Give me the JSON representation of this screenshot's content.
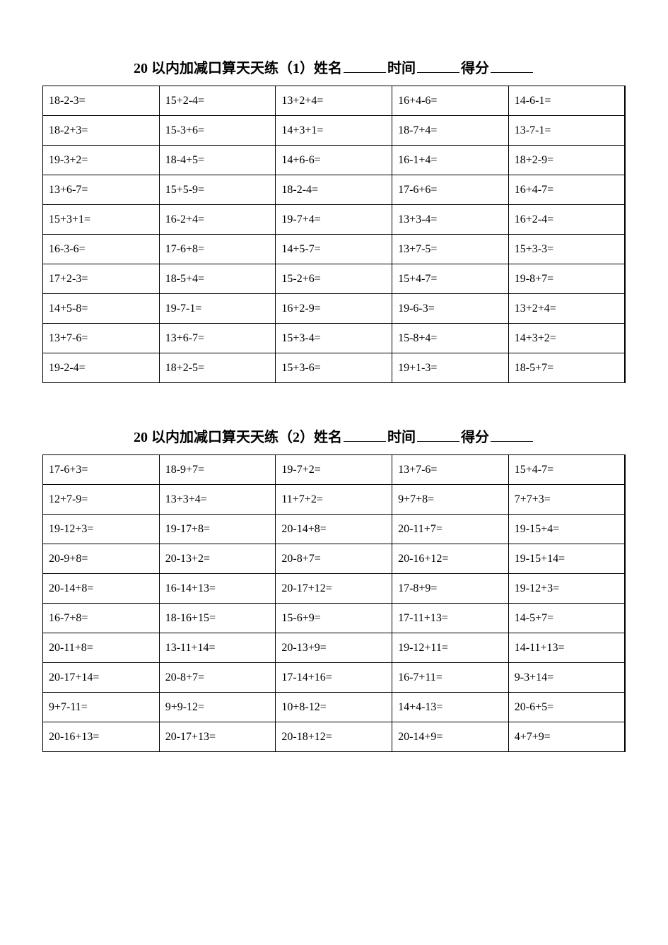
{
  "page": {
    "background_color": "#ffffff",
    "border_color": "#000000",
    "font_family_title": "SimSun",
    "font_family_cells": "Times New Roman",
    "title_fontsize": 20,
    "cell_fontsize": 16,
    "columns": 5,
    "rows_per_table": 10
  },
  "worksheets": [
    {
      "title_prefix": "20 以内加减口算天天练（1）姓名",
      "title_mid1": "时间",
      "title_mid2": "得分",
      "rows": [
        [
          "18-2-3=",
          "15+2-4=",
          "13+2+4=",
          "16+4-6=",
          "14-6-1="
        ],
        [
          "18-2+3=",
          "15-3+6=",
          "14+3+1=",
          "18-7+4=",
          "13-7-1="
        ],
        [
          "19-3+2=",
          "18-4+5=",
          "14+6-6=",
          "16-1+4=",
          "18+2-9="
        ],
        [
          "13+6-7=",
          "15+5-9=",
          "18-2-4=",
          "17-6+6=",
          "16+4-7="
        ],
        [
          "15+3+1=",
          "16-2+4=",
          "19-7+4=",
          "13+3-4=",
          "16+2-4="
        ],
        [
          "16-3-6=",
          "17-6+8=",
          "14+5-7=",
          "13+7-5=",
          "15+3-3="
        ],
        [
          "17+2-3=",
          "18-5+4=",
          "15-2+6=",
          "15+4-7=",
          "19-8+7="
        ],
        [
          "14+5-8=",
          "19-7-1=",
          "16+2-9=",
          "19-6-3=",
          "13+2+4="
        ],
        [
          "13+7-6=",
          "13+6-7=",
          "15+3-4=",
          "15-8+4=",
          "14+3+2="
        ],
        [
          "19-2-4=",
          "18+2-5=",
          "15+3-6=",
          "19+1-3=",
          "18-5+7="
        ]
      ]
    },
    {
      "title_prefix": "20 以内加减口算天天练（2）姓名",
      "title_mid1": "时间",
      "title_mid2": "得分",
      "rows": [
        [
          "17-6+3=",
          "18-9+7=",
          "19-7+2=",
          "13+7-6=",
          "15+4-7="
        ],
        [
          "12+7-9=",
          "13+3+4=",
          "11+7+2=",
          "9+7+8=",
          "7+7+3="
        ],
        [
          "19-12+3=",
          "19-17+8=",
          "20-14+8=",
          "20-11+7=",
          "19-15+4="
        ],
        [
          "20-9+8=",
          "20-13+2=",
          "20-8+7=",
          "20-16+12=",
          "19-15+14="
        ],
        [
          "20-14+8=",
          "16-14+13=",
          "20-17+12=",
          "17-8+9=",
          "19-12+3="
        ],
        [
          "16-7+8=",
          "18-16+15=",
          "15-6+9=",
          "17-11+13=",
          "14-5+7="
        ],
        [
          "20-11+8=",
          "13-11+14=",
          "20-13+9=",
          "19-12+11=",
          "14-11+13="
        ],
        [
          "20-17+14=",
          "20-8+7=",
          "17-14+16=",
          "16-7+11=",
          "9-3+14="
        ],
        [
          "9+7-11=",
          "9+9-12=",
          "10+8-12=",
          "14+4-13=",
          "20-6+5="
        ],
        [
          "20-16+13=",
          "20-17+13=",
          "20-18+12=",
          "20-14+9=",
          "4+7+9="
        ]
      ]
    }
  ]
}
